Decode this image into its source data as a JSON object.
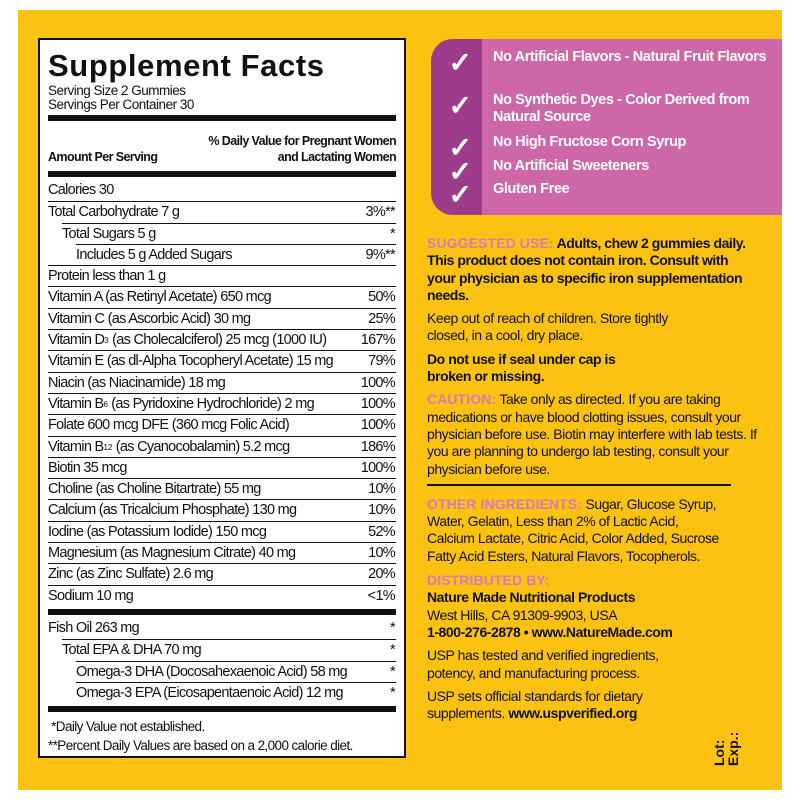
{
  "facts": {
    "title": "Supplement Facts",
    "serving_size": "Serving Size 2 Gummies",
    "servings_per_container": "Servings Per Container 30",
    "amount_header": "Amount Per Serving",
    "dv_header_1": "% Daily Value for Pregnant Women",
    "dv_header_2": "and Lactating Women",
    "rows": [
      {
        "label": "Calories 30",
        "dv": "",
        "indent": 0
      },
      {
        "label": "Total Carbohydrate 7 g",
        "dv": "3%**",
        "indent": 0
      },
      {
        "label": "Total Sugars 5 g",
        "dv": "*",
        "indent": 1
      },
      {
        "label": "Includes 5 g Added Sugars",
        "dv": "9%**",
        "indent": 2
      },
      {
        "label": "Protein less than 1 g",
        "dv": "",
        "indent": 0
      },
      {
        "label": "Vitamin A (as Retinyl Acetate) 650 mcg",
        "dv": "50%",
        "indent": 0
      },
      {
        "label": "Vitamin C (as Ascorbic Acid) 30 mg",
        "dv": "25%",
        "indent": 0
      },
      {
        "label": "Vitamin D",
        "sub": "3",
        "label_after": " (as Cholecalciferol) 25 mcg (1000 IU)",
        "dv": "167%",
        "indent": 0
      },
      {
        "label": "Vitamin E (as dl-Alpha Tocopheryl Acetate) 15 mg",
        "dv": "79%",
        "indent": 0
      },
      {
        "label": "Niacin (as Niacinamide) 18 mg",
        "dv": "100%",
        "indent": 0
      },
      {
        "label": "Vitamin B",
        "sub": "6",
        "label_after": " (as Pyridoxine Hydrochloride) 2 mg",
        "dv": "100%",
        "indent": 0
      },
      {
        "label": "Folate 600 mcg DFE (360 mcg Folic Acid)",
        "dv": "100%",
        "indent": 0
      },
      {
        "label": "Vitamin B",
        "sub": "12",
        "label_after": " (as Cyanocobalamin) 5.2 mcg",
        "dv": "186%",
        "indent": 0
      },
      {
        "label": "Biotin 35 mcg",
        "dv": "100%",
        "indent": 0
      },
      {
        "label": "Choline (as Choline Bitartrate) 55 mg",
        "dv": "10%",
        "indent": 0
      },
      {
        "label": "Calcium (as Tricalcium Phosphate) 130 mg",
        "dv": "10%",
        "indent": 0
      },
      {
        "label": "Iodine (as Potassium Iodide) 150 mcg",
        "dv": "52%",
        "indent": 0
      },
      {
        "label": "Magnesium (as Magnesium Citrate) 40 mg",
        "dv": "10%",
        "indent": 0
      },
      {
        "label": "Zinc (as Zinc Sulfate) 2.6 mg",
        "dv": "20%",
        "indent": 0
      },
      {
        "label": "Sodium 10 mg",
        "dv": "<1%",
        "indent": 0
      }
    ],
    "oil_rows": [
      {
        "label": "Fish Oil 263 mg",
        "dv": "*",
        "indent": 0
      },
      {
        "label": "Total EPA & DHA 70 mg",
        "dv": "*",
        "indent": 1
      },
      {
        "label": "Omega-3 DHA (Docosahexaenoic Acid) 58 mg",
        "dv": "*",
        "indent": 2
      },
      {
        "label": "Omega-3 EPA (Eicosapentaenoic Acid) 12 mg",
        "dv": "*",
        "indent": 2
      }
    ],
    "footnote_1": " *Daily Value not established.",
    "footnote_2": "**Percent Daily Values are based on a 2,000 calorie diet."
  },
  "badges": [
    {
      "icon": "checkmark-icon",
      "text": "No Artificial Flavors - Natural Fruit Flavors"
    },
    {
      "icon": "checkmark-icon",
      "text": "No Synthetic Dyes - Color Derived from Natural Source"
    },
    {
      "icon": "checkmark-icon",
      "text": "No High Fructose Corn Syrup"
    },
    {
      "icon": "checkmark-icon",
      "text": "No Artificial Sweeteners"
    },
    {
      "icon": "checkmark-icon",
      "text": "Gluten Free"
    }
  ],
  "info": {
    "suggested_label": "SUGGESTED USE:",
    "suggested_text": " Adults, chew 2 gummies daily. This product does not contain iron. Consult with your physician as to specific iron supplementation needs.",
    "storage": "Keep out of reach of children. Store tightly closed, in a cool, dry place.",
    "seal": "Do not use if seal under cap is broken or missing.",
    "caution_label": "CAUTION:",
    "caution_text": " Take only as directed. If you are taking medications or have blood clotting issues, consult your physician before use. Biotin may interfere with lab tests. If you are planning to undergo lab testing, consult your physician before use.",
    "ingredients_label": "OTHER INGREDIENTS:",
    "ingredients_text": " Sugar, Glucose Syrup, Water, Gelatin, Less than 2% of Lactic Acid, Calcium Lactate, Citric Acid, Color Added, Sucrose Fatty Acid Esters, Natural Flavors, Tocopherols.",
    "distributed_label": "DISTRIBUTED BY:",
    "company": "Nature Made Nutritional Products",
    "address": "West Hills, CA 91309-9903, USA",
    "contact": "1-800-276-2878 • www.NatureMade.com",
    "usp_1": "USP has tested and verified ingredients, potency, and manufacturing process.",
    "usp_2_text": "USP sets official standards for dietary supplements. ",
    "usp_2_link": "www.uspverified.org",
    "lot": "Lot:",
    "exp": "Exp.:"
  },
  "colors": {
    "background": "#FCC212",
    "badge_pink": "#CE67A7",
    "badge_purple": "#9E3C8C",
    "heading_pink": "#D27DBA"
  }
}
